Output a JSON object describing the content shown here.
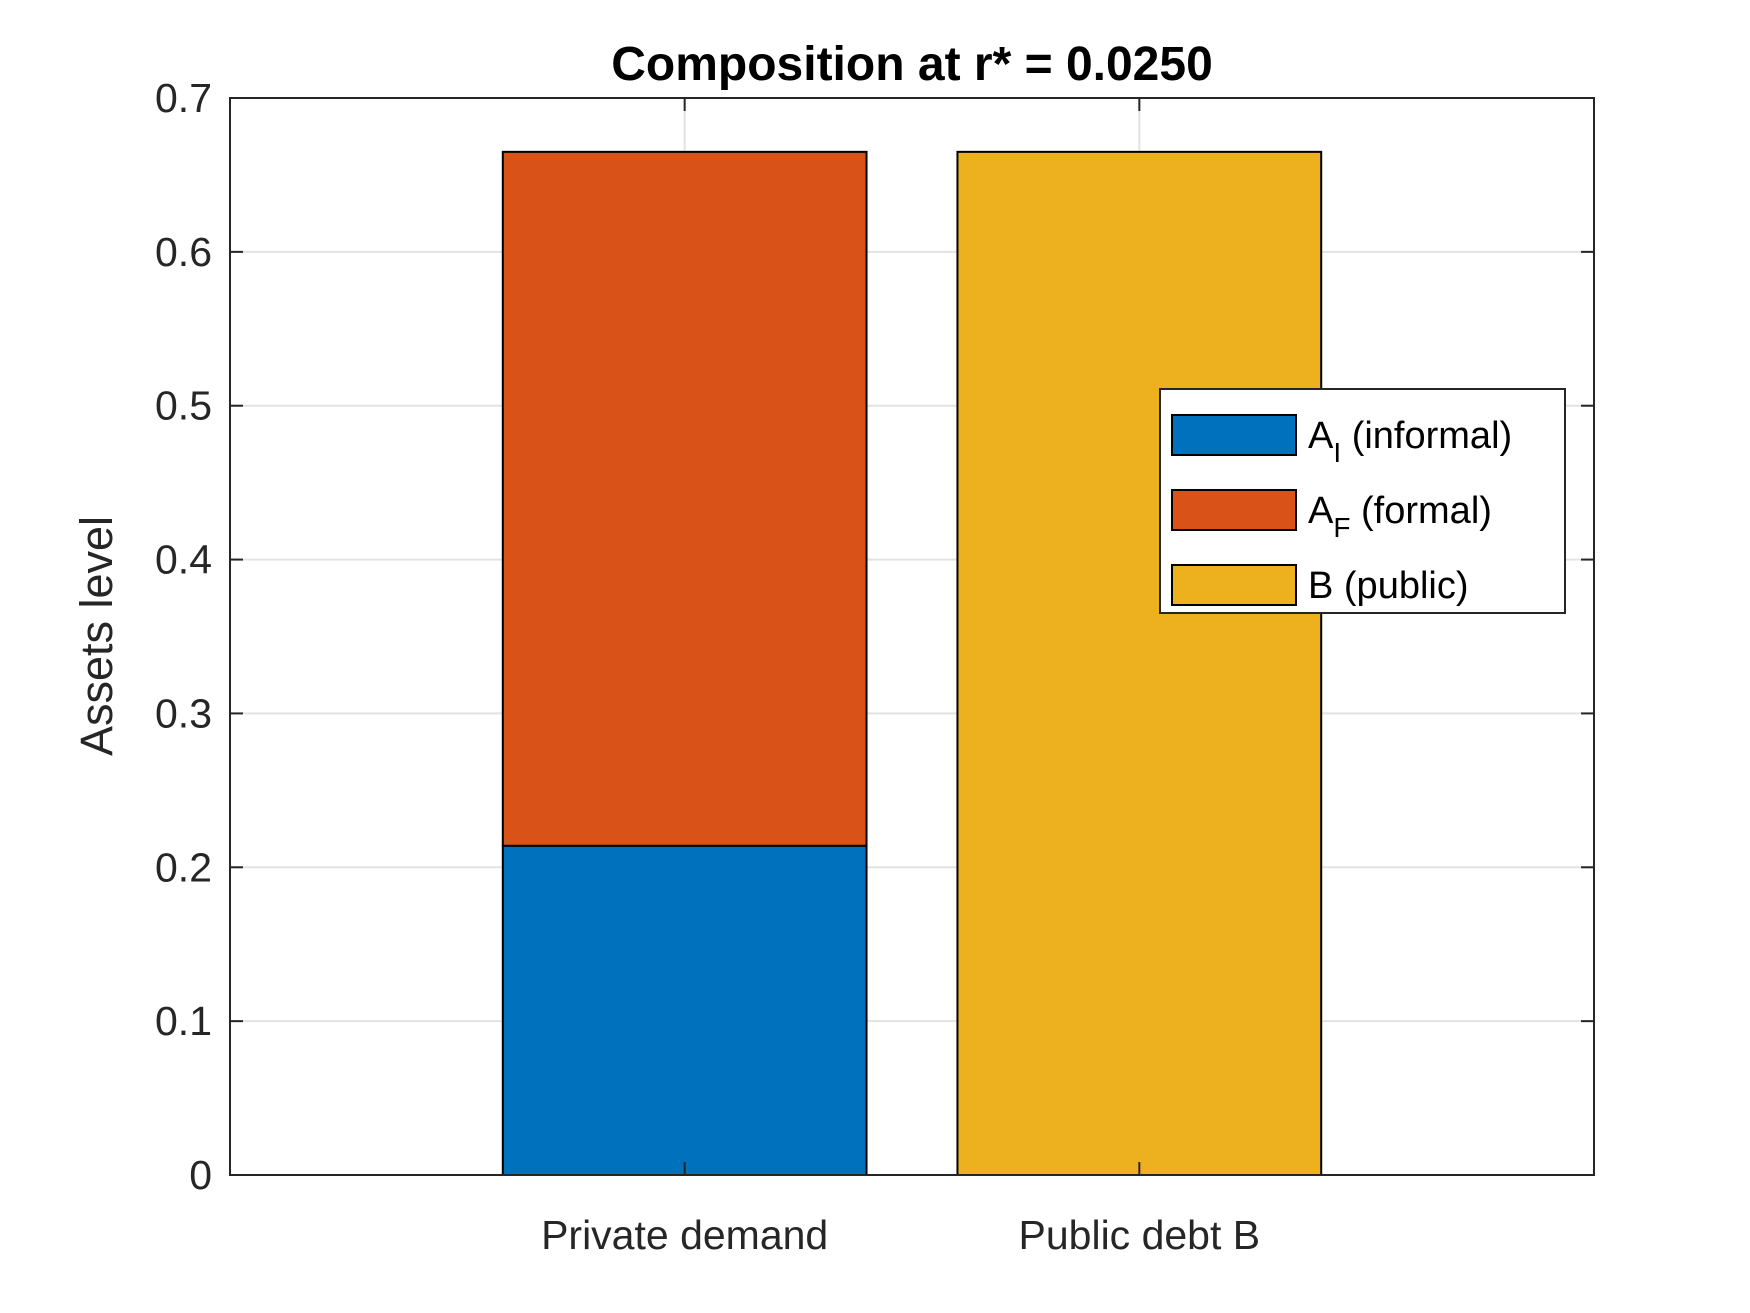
{
  "chart_data": {
    "type": "bar",
    "stacked": true,
    "title": "Composition at r* = 0.0250",
    "xlabel": "",
    "ylabel": "Assets level",
    "categories": [
      "Private demand",
      "Public debt B"
    ],
    "ylim": [
      0,
      0.7
    ],
    "yticks": [
      "0",
      "0.1",
      "0.2",
      "0.3",
      "0.4",
      "0.5",
      "0.6",
      "0.7"
    ],
    "grid": true,
    "legend_position": "right",
    "series": [
      {
        "name": "A_I (informal)",
        "label_main": "A",
        "label_sub": "I",
        "label_rest": " (informal)",
        "color": "#0072BD",
        "values": [
          0.214,
          0
        ]
      },
      {
        "name": "A_F (formal)",
        "label_main": "A",
        "label_sub": "F",
        "label_rest": " (formal)",
        "color": "#D95319",
        "values": [
          0.451,
          0
        ]
      },
      {
        "name": "B (public)",
        "label_main": "B (public)",
        "label_sub": "",
        "label_rest": "",
        "color": "#EDB120",
        "values": [
          0,
          0.665
        ]
      }
    ]
  }
}
